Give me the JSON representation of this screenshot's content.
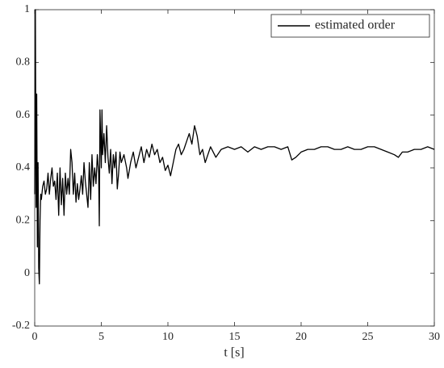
{
  "chart_data": {
    "type": "line",
    "xlabel": "t [s]",
    "x": [
      0,
      0.05,
      0.1,
      0.15,
      0.2,
      0.25,
      0.3,
      0.35,
      0.4,
      0.45,
      0.5,
      0.6,
      0.7,
      0.8,
      0.9,
      1.0,
      1.1,
      1.2,
      1.3,
      1.4,
      1.5,
      1.6,
      1.7,
      1.8,
      1.9,
      2.0,
      2.1,
      2.2,
      2.3,
      2.4,
      2.5,
      2.6,
      2.7,
      2.8,
      2.9,
      3.0,
      3.1,
      3.2,
      3.3,
      3.4,
      3.5,
      3.6,
      3.7,
      3.8,
      3.9,
      4.0,
      4.1,
      4.2,
      4.3,
      4.4,
      4.5,
      4.6,
      4.7,
      4.8,
      4.85,
      4.9,
      5.0,
      5.05,
      5.1,
      5.2,
      5.3,
      5.4,
      5.5,
      5.6,
      5.7,
      5.8,
      5.9,
      6.0,
      6.1,
      6.2,
      6.3,
      6.4,
      6.5,
      6.7,
      6.9,
      7.0,
      7.2,
      7.4,
      7.6,
      7.8,
      8.0,
      8.2,
      8.4,
      8.6,
      8.8,
      9.0,
      9.2,
      9.4,
      9.6,
      9.8,
      10.0,
      10.2,
      10.4,
      10.6,
      10.8,
      11.0,
      11.2,
      11.4,
      11.6,
      11.8,
      12.0,
      12.2,
      12.4,
      12.6,
      12.8,
      13.0,
      13.2,
      13.4,
      13.6,
      14.0,
      14.5,
      15,
      15.5,
      16,
      16.5,
      17,
      17.5,
      18,
      18.5,
      19,
      19.3,
      19.6,
      20,
      20.5,
      21,
      21.5,
      22,
      22.5,
      23,
      23.5,
      24,
      24.5,
      25,
      25.5,
      26,
      26.5,
      27,
      27.3,
      27.6,
      28,
      28.5,
      29,
      29.5,
      30
    ],
    "series": [
      {
        "name": "estimated order",
        "color": "#000000",
        "values": [
          0.3,
          1.0,
          0.25,
          0.68,
          0.1,
          0.42,
          0.02,
          -0.04,
          0.2,
          0.3,
          0.28,
          0.33,
          0.35,
          0.3,
          0.32,
          0.38,
          0.3,
          0.36,
          0.4,
          0.33,
          0.35,
          0.28,
          0.38,
          0.22,
          0.4,
          0.26,
          0.36,
          0.22,
          0.38,
          0.3,
          0.36,
          0.3,
          0.47,
          0.42,
          0.3,
          0.38,
          0.27,
          0.34,
          0.28,
          0.32,
          0.37,
          0.3,
          0.42,
          0.35,
          0.3,
          0.25,
          0.42,
          0.28,
          0.45,
          0.33,
          0.4,
          0.34,
          0.45,
          0.38,
          0.18,
          0.62,
          0.4,
          0.62,
          0.45,
          0.53,
          0.42,
          0.56,
          0.44,
          0.38,
          0.47,
          0.34,
          0.45,
          0.4,
          0.46,
          0.32,
          0.38,
          0.46,
          0.42,
          0.45,
          0.4,
          0.36,
          0.42,
          0.46,
          0.4,
          0.44,
          0.48,
          0.42,
          0.47,
          0.44,
          0.49,
          0.45,
          0.47,
          0.42,
          0.44,
          0.39,
          0.41,
          0.37,
          0.42,
          0.47,
          0.49,
          0.45,
          0.47,
          0.5,
          0.53,
          0.49,
          0.56,
          0.52,
          0.45,
          0.47,
          0.42,
          0.45,
          0.48,
          0.46,
          0.44,
          0.47,
          0.48,
          0.47,
          0.48,
          0.46,
          0.48,
          0.47,
          0.48,
          0.48,
          0.47,
          0.48,
          0.43,
          0.44,
          0.46,
          0.47,
          0.47,
          0.48,
          0.48,
          0.47,
          0.47,
          0.48,
          0.47,
          0.47,
          0.48,
          0.48,
          0.47,
          0.46,
          0.45,
          0.44,
          0.46,
          0.46,
          0.47,
          0.47,
          0.48,
          0.47
        ]
      }
    ],
    "xlim": [
      0,
      30
    ],
    "ylim": [
      -0.2,
      1
    ],
    "xticks": [
      0,
      5,
      10,
      15,
      20,
      25,
      30
    ],
    "yticks": [
      -0.2,
      0,
      0.2,
      0.4,
      0.6,
      0.8,
      1
    ],
    "legend": "northeast"
  }
}
